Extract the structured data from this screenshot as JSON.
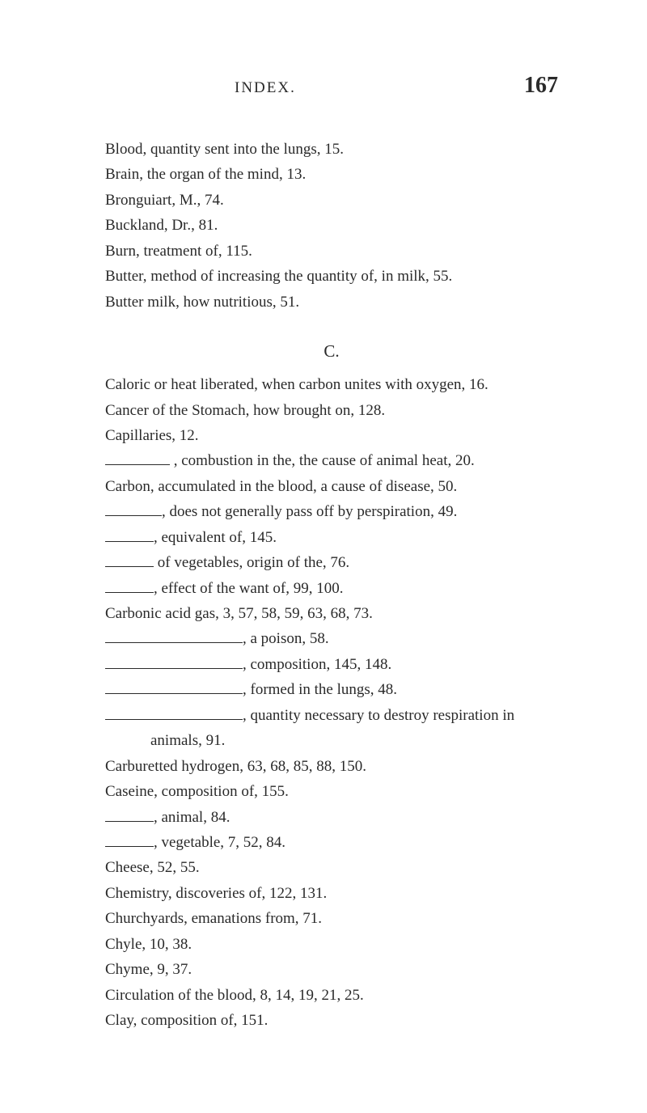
{
  "header": {
    "running_head": "INDEX.",
    "page_number": "167"
  },
  "entries_b": [
    "Blood, quantity sent into the lungs, 15.",
    "Brain, the organ of the mind, 13.",
    "Bronguiart, M., 74.",
    "Buckland, Dr., 81.",
    "Burn, treatment of, 115.",
    "Butter, method of increasing the quantity of, in milk, 55.",
    "Butter milk, how nutritious, 51."
  ],
  "section_c": "C.",
  "entries_c": {
    "c0": "Caloric or heat liberated, when carbon unites with oxygen, 16.",
    "c1": "Cancer of the Stomach, how brought on, 128.",
    "c2": "Capillaries, 12.",
    "c3": " , combustion in the, the cause of animal heat, 20.",
    "c4": "Carbon, accumulated in the blood, a cause of disease, 50.",
    "c5": ", does not generally pass off by perspiration, 49.",
    "c6": ", equivalent of, 145.",
    "c7": " of vegetables, origin of the, 76.",
    "c8": ", effect of the want of, 99, 100.",
    "c9": "Carbonic acid gas, 3, 57, 58, 59, 63, 68, 73.",
    "c10": ", a poison, 58.",
    "c11": ", composition, 145, 148.",
    "c12": ", formed in the lungs, 48.",
    "c13": ", quantity necessary to destroy respiration in",
    "c13b": "animals, 91.",
    "c14": "Carburetted hydrogen, 63, 68, 85, 88, 150.",
    "c15": "Caseine, composition of, 155.",
    "c16": ", animal, 84.",
    "c17": ", vegetable, 7, 52, 84.",
    "c18": "Cheese, 52, 55.",
    "c19": "Chemistry, discoveries of, 122, 131.",
    "c20": "Churchyards, emanations from, 71.",
    "c21": "Chyle, 10, 38.",
    "c22": "Chyme, 9, 37.",
    "c23": "Circulation of the blood, 8, 14, 19, 21, 25.",
    "c24": "Clay, composition of, 151."
  }
}
